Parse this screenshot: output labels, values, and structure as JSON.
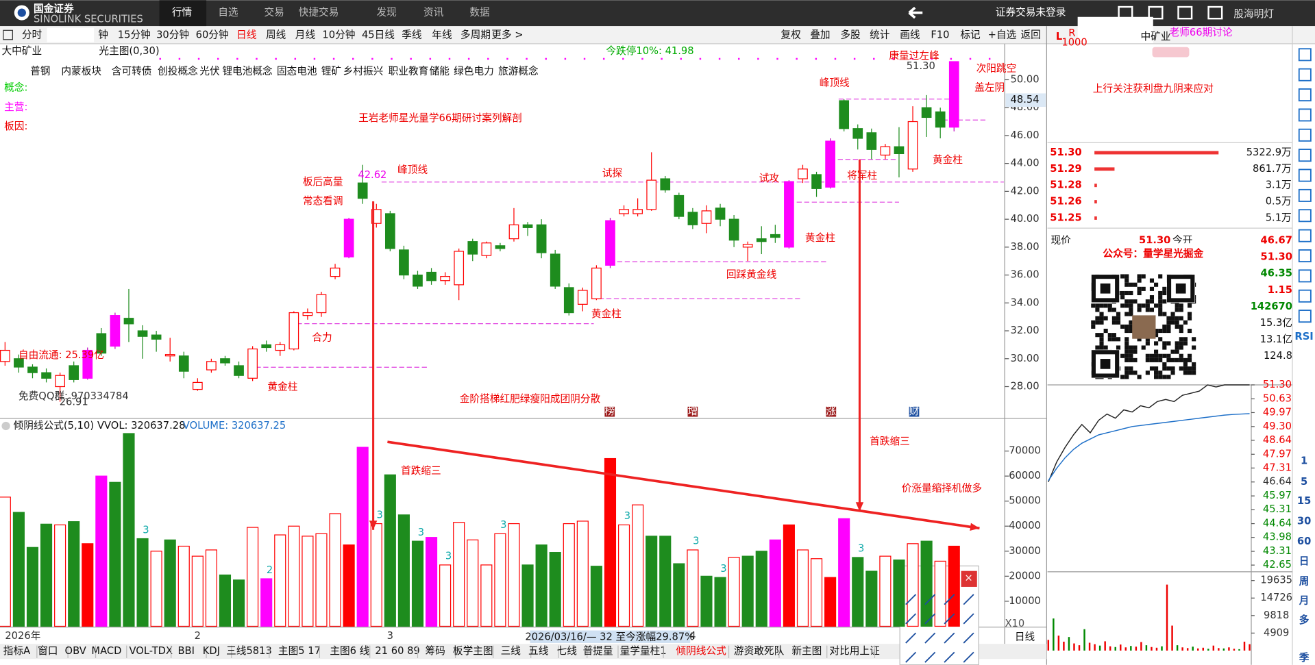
{
  "nav": {
    "logo": "国金证券",
    "logo_sub": "SINOLINK SECURITIES",
    "tabs": [
      "行情",
      "自选",
      "交易",
      "快捷交易",
      "发现",
      "资讯",
      "数据"
    ],
    "login": "证券交易未登录"
  },
  "toolbar": {
    "periods": [
      "分时",
      "钟",
      "15分钟",
      "30分钟",
      "60分钟",
      "日线",
      "周线",
      "月线",
      "10分钟",
      "45日线",
      "季线",
      "年线",
      "多周期",
      "更多 >"
    ],
    "tools": [
      "复权",
      "叠加",
      "多股",
      "统计",
      "画线",
      "F10",
      "标记",
      "+自选",
      "返回"
    ]
  },
  "info": {
    "stock": "大中矿业",
    "formula": "光主图(0,30)",
    "limit": "今跌停10%: 41.98",
    "concepts": [
      "普钢",
      "内蒙板块",
      "含可转债",
      "创投概念",
      "光伏",
      "锂电池概念",
      "固态电池",
      "锂矿",
      "乡村振兴",
      "职业教育",
      "储能",
      "绿色电力",
      "旅游概念"
    ],
    "labels": [
      "概念:",
      "主营:",
      "板因:"
    ]
  },
  "chart": {
    "type": "candlestick",
    "title": "王岩老师星光量学66期研讨案列解剖",
    "ylim": [
      25.84,
      51.98
    ],
    "yticks": [
      {
        "value": 28,
        "label": "28.00"
      },
      {
        "value": 30,
        "label": "30.00"
      },
      {
        "value": 32,
        "label": "32.00"
      },
      {
        "value": 34,
        "label": "34.00"
      },
      {
        "value": 36,
        "label": "36.00"
      },
      {
        "value": 38,
        "label": "38.00"
      },
      {
        "value": 40,
        "label": "40.00"
      },
      {
        "value": 42,
        "label": "42.00"
      },
      {
        "value": 44,
        "label": "44.00"
      },
      {
        "value": 46,
        "label": "46.00"
      },
      {
        "value": 48,
        "label": "48.00"
      },
      {
        "value": 50,
        "label": "50.00"
      }
    ],
    "crosshair": {
      "value": 48.54,
      "label": "48.54"
    },
    "categories": [
      "2026年",
      null,
      null,
      null,
      null,
      null,
      null,
      null,
      null,
      null,
      null,
      null,
      null,
      null,
      "2",
      null,
      null,
      null,
      null,
      null,
      null,
      null,
      null,
      null,
      null,
      null,
      null,
      null,
      "3",
      null,
      null,
      null,
      null,
      null,
      null,
      null,
      null,
      null,
      null,
      null,
      null,
      null,
      null,
      null,
      null,
      null,
      null,
      null,
      null,
      null,
      "4",
      null,
      null,
      null,
      null,
      null,
      null,
      null,
      null,
      null,
      null,
      null,
      null,
      null,
      null,
      null,
      null,
      null,
      null,
      null
    ],
    "candles": {
      "open": [
        29.8,
        30.0,
        29.4,
        29.0,
        28.0,
        29.5,
        28.6,
        31.8,
        30.9,
        32.9,
        32.0,
        31.7,
        30.2,
        30.2,
        27.8,
        29.2,
        30.0,
        29.5,
        28.6,
        31.0,
        30.6,
        30.7,
        33.1,
        33.3,
        35.9,
        37.3,
        42.6,
        39.7,
        40.4,
        37.8,
        36.0,
        36.2,
        35.6,
        35.3,
        38.4,
        37.4,
        38.1,
        38.6,
        39.6,
        39.6,
        37.5,
        35.1,
        33.9,
        34.3,
        36.7,
        40.4,
        40.4,
        40.7,
        42.9,
        41.7,
        40.5,
        39.7,
        40.8,
        40.0,
        38.0,
        38.6,
        38.9,
        38.0,
        42.9,
        43.2,
        42.3,
        48.5,
        46.5,
        46.2,
        44.6,
        45.2,
        43.6,
        48.0,
        47.7,
        46.6
      ],
      "high": [
        31.2,
        30.3,
        29.6,
        29.3,
        29.0,
        29.8,
        30.8,
        32.2,
        33.3,
        35.0,
        32.4,
        32.0,
        31.5,
        30.5,
        28.6,
        30.0,
        30.2,
        29.8,
        30.9,
        31.3,
        31.2,
        33.4,
        33.6,
        34.8,
        36.8,
        40.1,
        43.9,
        41.1,
        40.6,
        38.1,
        36.3,
        36.5,
        36.2,
        37.9,
        38.6,
        38.4,
        38.3,
        40.8,
        39.8,
        40.0,
        37.8,
        35.4,
        35.1,
        36.7,
        40.1,
        41.0,
        41.5,
        44.8,
        43.1,
        41.9,
        40.8,
        41.0,
        41.1,
        40.3,
        38.4,
        39.5,
        39.6,
        42.8,
        43.9,
        43.4,
        45.8,
        48.6,
        46.8,
        46.5,
        45.4,
        46.6,
        48.1,
        48.9,
        48.0,
        51.3
      ],
      "low": [
        29.5,
        29.0,
        28.6,
        28.3,
        26.91,
        28.3,
        28.5,
        30.2,
        30.7,
        31.2,
        30.0,
        30.5,
        29.8,
        28.6,
        27.7,
        29.0,
        29.5,
        28.6,
        28.4,
        30.5,
        30.2,
        30.6,
        32.8,
        33.0,
        35.7,
        37.2,
        41.1,
        39.4,
        37.7,
        35.7,
        35.0,
        35.3,
        35.3,
        34.2,
        37.0,
        37.2,
        37.7,
        38.4,
        38.8,
        37.2,
        35.0,
        33.1,
        33.4,
        34.2,
        36.5,
        40.2,
        40.2,
        40.6,
        41.9,
        40.0,
        39.3,
        39.0,
        39.5,
        38.0,
        37.0,
        37.5,
        38.3,
        37.9,
        42.6,
        41.6,
        42.2,
        46.3,
        45.0,
        44.3,
        44.3,
        43.0,
        43.4,
        45.9,
        45.8,
        46.3
      ],
      "close": [
        30.6,
        29.4,
        29.0,
        28.6,
        28.8,
        28.5,
        30.6,
        30.4,
        33.1,
        32.5,
        31.6,
        31.4,
        30.3,
        29.1,
        28.3,
        29.8,
        29.7,
        28.8,
        30.7,
        30.8,
        31.0,
        33.3,
        33.3,
        34.6,
        36.5,
        40.0,
        41.5,
        40.7,
        37.9,
        36.0,
        35.2,
        35.6,
        35.9,
        37.7,
        37.5,
        38.3,
        37.9,
        39.6,
        39.4,
        37.6,
        35.2,
        33.3,
        34.9,
        36.5,
        39.9,
        40.7,
        40.7,
        42.8,
        42.1,
        40.2,
        39.6,
        40.6,
        40.0,
        38.5,
        38.2,
        38.4,
        38.7,
        42.7,
        43.6,
        42.2,
        45.6,
        46.5,
        45.8,
        45.0,
        45.2,
        44.7,
        47.0,
        47.3,
        46.6,
        51.3
      ],
      "kind": [
        "up",
        "down",
        "down",
        "down",
        "up",
        "down",
        "mag",
        "down",
        "mag",
        "down",
        "down",
        "down",
        "up",
        "down",
        "up",
        "up",
        "down",
        "down",
        "up",
        "down",
        "up",
        "up",
        "up",
        "up",
        "up",
        "mag",
        "down",
        "up",
        "down",
        "down",
        "down",
        "down",
        "up",
        "up",
        "down",
        "up",
        "down",
        "up",
        "down",
        "down",
        "down",
        "down",
        "up",
        "up",
        "mag",
        "up",
        "up",
        "up",
        "down",
        "down",
        "down",
        "up",
        "down",
        "down",
        "up",
        "down",
        "down",
        "mag",
        "up",
        "down",
        "mag",
        "down",
        "down",
        "down",
        "up",
        "down",
        "up",
        "down",
        "down",
        "mag"
      ]
    },
    "annotations": [
      "板后高量",
      "常态看调",
      "峰顶线",
      "42.62",
      "试探",
      "试攻",
      "峰顶线",
      "康量过左峰",
      "51.30",
      "次阳跳空",
      "盖左阴",
      "将军柱",
      "黄金柱",
      "黄金柱",
      "回踩黄金线",
      "黄金柱",
      "合力",
      "黄金柱",
      "金阶搭梯红肥绿瘦阳成团阴分散",
      "自由流通: 25.39亿",
      "免费QQ群: 970334784",
      "26.91"
    ],
    "markers": [
      "榜",
      "增",
      "涨",
      "财"
    ],
    "date_label": "2026/03/16/— 32 至今涨幅29.87%",
    "period": "日线"
  },
  "volume": {
    "type": "bar",
    "title": "倾阴线公式(5,10)",
    "vvol": "VVOL: 320637.28",
    "vol": "VOLUME: 320637.25",
    "unit": "X10",
    "ylim": [
      0,
      82700
    ],
    "yticks": [
      10000,
      20000,
      30000,
      40000,
      50000,
      60000,
      70000
    ],
    "values": [
      51600,
      45500,
      31500,
      40800,
      40500,
      41800,
      33000,
      60000,
      57500,
      77000,
      35000,
      30000,
      34500,
      32000,
      28000,
      30500,
      20500,
      18500,
      39500,
      19000,
      36500,
      40000,
      36000,
      37000,
      45000,
      32500,
      71500,
      41000,
      60500,
      44500,
      34000,
      35500,
      24500,
      41500,
      34500,
      24500,
      37000,
      41000,
      24500,
      32500,
      29500,
      41000,
      42000,
      24000,
      67000,
      40500,
      48500,
      36000,
      36000,
      25000,
      30500,
      20000,
      19500,
      27500,
      28000,
      30000,
      34500,
      40500,
      30500,
      27000,
      19500,
      43000,
      27500,
      22000,
      28000,
      26500,
      33000,
      34000,
      26000,
      32000
    ],
    "kind": [
      "up",
      "down",
      "down",
      "down",
      "up",
      "down",
      "fill",
      "mag",
      "down",
      "down",
      "down",
      "up",
      "down",
      "up",
      "up",
      "up",
      "down",
      "down",
      "up",
      "mag",
      "up",
      "up",
      "up",
      "up",
      "up",
      "fill",
      "mag",
      "up",
      "down",
      "down",
      "down",
      "mag",
      "up",
      "up",
      "up",
      "up",
      "up",
      "up",
      "down",
      "down",
      "down",
      "up",
      "up",
      "down",
      "fill",
      "up",
      "up",
      "down",
      "down",
      "down",
      "up",
      "down",
      "down",
      "up",
      "down",
      "down",
      "mag",
      "fill",
      "up",
      "up",
      "fill",
      "mag",
      "down",
      "down",
      "up",
      "down",
      "up",
      "down",
      "up",
      "fill"
    ],
    "countdown": [
      null,
      null,
      null,
      null,
      null,
      null,
      null,
      null,
      null,
      null,
      "3",
      null,
      null,
      null,
      null,
      null,
      null,
      null,
      null,
      "2",
      null,
      null,
      null,
      null,
      null,
      null,
      null,
      "3",
      null,
      null,
      "3",
      null,
      "3",
      null,
      null,
      null,
      "3",
      null,
      null,
      null,
      null,
      null,
      null,
      null,
      null,
      "3",
      null,
      null,
      null,
      null,
      "3",
      null,
      "3",
      null,
      null,
      null,
      null,
      null,
      null,
      null,
      null,
      null,
      "3",
      null,
      null,
      null,
      null,
      null,
      null,
      null
    ],
    "annotations": [
      "首跌缩三",
      "首跌缩三",
      "价涨量缩择机做多"
    ]
  },
  "bottom_tabs": [
    "指标A",
    "窗口",
    "OBV",
    "MACD",
    "VOL-TDX",
    "BBI",
    "KDJ",
    "三线5813",
    "主图5 17",
    "主图6 线",
    "21 60 89",
    "筹码",
    "板学主图",
    "三线",
    "五线",
    "七线",
    "普提量",
    "量学量柱1",
    "倾阴线公式",
    "游资敢死队",
    "新主图",
    "对比用上证"
  ],
  "popup": {
    "close": "×"
  },
  "right": {
    "header": {
      "l": "L",
      "r": "R",
      "sub": "1000",
      "name": "中矿业",
      "tag": "老师66期讨论",
      "watermark": "股海明灯"
    },
    "note": "上行关注获利盘九阴来应对",
    "book": {
      "prices": [
        "51.30",
        "51.29",
        "51.28",
        "51.26",
        "51.25"
      ],
      "amounts": [
        5322.9,
        861.7,
        3.1,
        0.5,
        5.1
      ],
      "amount_labels": [
        "5322.9万",
        "861.7万",
        "3.1万",
        "0.5万",
        "5.1万"
      ]
    },
    "quote": {
      "label": "现价",
      "price": "51.30",
      "open_label": "今开",
      "values": [
        "46.67",
        "51.30",
        "46.35",
        "1.15",
        "142670",
        "15.3亿",
        "13.1亿",
        "124.8"
      ]
    },
    "wechat": "公众号：量学星光掘金",
    "intraday": {
      "type": "line",
      "ylim": [
        42.65,
        51.3
      ],
      "yticks": [
        {
          "value": 51.3,
          "label": "51.30"
        },
        50.63,
        49.97,
        {
          "value": 49.3,
          "label": "49.30"
        },
        48.64,
        47.97,
        47.31,
        46.64,
        45.97,
        45.31,
        44.64,
        43.98,
        43.31,
        42.65
      ],
      "price": [
        46.64,
        47.6,
        48.3,
        48.9,
        49.4,
        49.0,
        49.6,
        49.9,
        49.7,
        50.1,
        50.0,
        50.3,
        50.2,
        50.5,
        50.6,
        50.5,
        50.8,
        50.9,
        51.0,
        51.3,
        51.2,
        51.3,
        51.3,
        51.3,
        51.3
      ],
      "avg": [
        46.7,
        47.3,
        47.8,
        48.2,
        48.5,
        48.7,
        48.9,
        49.0,
        49.1,
        49.2,
        49.3,
        49.35,
        49.4,
        49.45,
        49.5,
        49.55,
        49.6,
        49.65,
        49.7,
        49.75,
        49.8,
        49.85,
        49.88,
        49.9,
        49.92
      ],
      "vlim": [
        0,
        22089
      ],
      "vticks": [
        19635,
        14726,
        9818,
        4909
      ],
      "volume": [
        3000,
        9000,
        4200,
        2500,
        3800,
        2000,
        1500,
        6000,
        2200,
        1800,
        1400,
        2600,
        1200,
        1000,
        1700,
        900,
        1300,
        1100,
        2400,
        1500,
        1000,
        800,
        1200,
        18500,
        7000,
        1500,
        900,
        700,
        1100,
        600,
        800,
        500,
        1400,
        700,
        600,
        900,
        500,
        400,
        2500,
        1800
      ]
    },
    "side": [
      "RSI",
      "1",
      "5",
      "15",
      "30",
      "60",
      "日",
      "周",
      "月",
      "多",
      "季"
    ]
  }
}
